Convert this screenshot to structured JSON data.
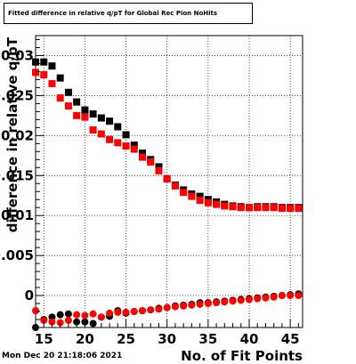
{
  "chart_data": {
    "type": "scatter",
    "title": "Fitted difference in relative q/pT for Global Rec Pion NoHits",
    "xlabel": "No. of Fit Points",
    "ylabel": "difference in relative q/pT",
    "xlim": [
      14,
      46.5
    ],
    "ylim": [
      -0.004,
      0.0325
    ],
    "x_ticks": [
      "15",
      "20",
      "25",
      "30",
      "35",
      "40",
      "45"
    ],
    "y_ticks": [
      "0",
      "0.005",
      "0.01",
      "0.015",
      "0.02",
      "0.025",
      "0.03"
    ],
    "grid": true,
    "series": [
      {
        "color": "#000000",
        "x": [
          14,
          15,
          16,
          17,
          18,
          19,
          20,
          21,
          22,
          23,
          24,
          25,
          26,
          27,
          28,
          29,
          30,
          31,
          32,
          33,
          34,
          35,
          36,
          37,
          38,
          39,
          40,
          41,
          42,
          43,
          44,
          45,
          46
        ],
        "y": [
          0.0292,
          0.0292,
          0.0287,
          0.0272,
          0.0254,
          0.0242,
          0.0232,
          0.0227,
          0.0222,
          0.0218,
          0.0211,
          0.0201,
          0.0188,
          0.0178,
          0.017,
          0.0161,
          0.0146,
          0.0138,
          0.0132,
          0.0127,
          0.0124,
          0.012,
          0.0117,
          0.0114,
          0.0112,
          0.0111,
          0.011,
          0.0111,
          0.0111,
          0.0111,
          0.011,
          0.011,
          0.011
        ]
      },
      {
        "color": "#ff0000",
        "x": [
          14,
          15,
          16,
          17,
          18,
          19,
          20,
          21,
          22,
          23,
          24,
          25,
          26,
          27,
          28,
          29,
          30,
          31,
          32,
          33,
          34,
          35,
          36,
          37,
          38,
          39,
          40,
          41,
          42,
          43,
          44,
          45,
          46
        ],
        "y": [
          0.0279,
          0.0276,
          0.0265,
          0.0247,
          0.0237,
          0.0225,
          0.0223,
          0.0207,
          0.0202,
          0.0195,
          0.0191,
          0.0187,
          0.0183,
          0.0173,
          0.0167,
          0.0156,
          0.0146,
          0.0137,
          0.0129,
          0.0124,
          0.0119,
          0.0116,
          0.0114,
          0.0112,
          0.0111,
          0.011,
          0.011,
          0.011,
          0.011,
          0.011,
          0.0109,
          0.0109,
          0.0109
        ]
      },
      {
        "color": "#000000",
        "x": [
          14,
          15,
          16,
          17,
          18,
          19,
          20,
          21,
          22,
          23,
          24,
          25,
          26,
          27,
          28,
          29,
          30,
          31,
          32,
          33,
          34,
          35,
          36,
          37,
          38,
          39,
          40,
          41,
          42,
          43,
          44,
          45,
          46
        ],
        "y": [
          -0.004,
          -0.003,
          -0.0027,
          -0.0024,
          -0.0023,
          -0.0033,
          -0.0033,
          -0.0035,
          -0.0027,
          -0.0026,
          -0.0019,
          -0.0022,
          -0.002,
          -0.0019,
          -0.0018,
          -0.0016,
          -0.0015,
          -0.0013,
          -0.0012,
          -0.0011,
          -0.0009,
          -0.0009,
          -0.0008,
          -0.0007,
          -0.0006,
          -0.0005,
          -0.0004,
          -0.0003,
          -0.0002,
          -0.0001,
          0.0,
          0.0001,
          0.0002
        ]
      },
      {
        "color": "#ff0000",
        "x": [
          14,
          15,
          16,
          17,
          18,
          19,
          20,
          21,
          22,
          23,
          24,
          25,
          26,
          27,
          28,
          29,
          30,
          31,
          32,
          33,
          34,
          35,
          36,
          37,
          38,
          39,
          40,
          41,
          42,
          43,
          44,
          45,
          46
        ],
        "y": [
          -0.0019,
          -0.0031,
          -0.0033,
          -0.0034,
          -0.0031,
          -0.0024,
          -0.0025,
          -0.0023,
          -0.0027,
          -0.0022,
          -0.0021,
          -0.0021,
          -0.002,
          -0.0019,
          -0.0018,
          -0.0017,
          -0.0015,
          -0.0014,
          -0.0013,
          -0.0012,
          -0.0011,
          -0.001,
          -0.0009,
          -0.0008,
          -0.0007,
          -0.0006,
          -0.0005,
          -0.0004,
          -0.0003,
          -0.0002,
          0.0,
          0.0,
          0.0
        ]
      }
    ]
  },
  "datestamp": "Mon Dec 20 21:18:06 2021"
}
